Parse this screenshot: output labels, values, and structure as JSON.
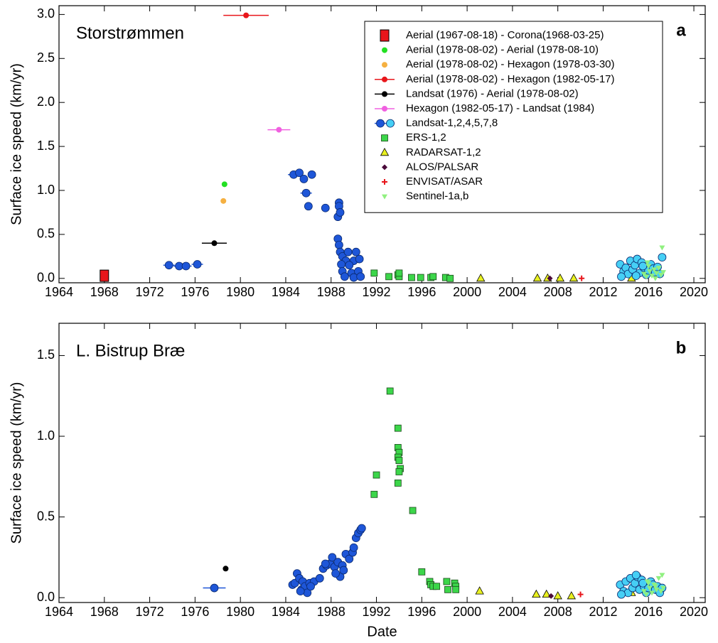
{
  "chart_data": [
    {
      "type": "scatter",
      "title": "Storstrømmen",
      "panel_label": "a",
      "ylabel": "Surface ice speed (km/yr)",
      "xlim": [
        1964,
        2021
      ],
      "ylim": [
        -0.05,
        3.1
      ],
      "xticks": [
        1964,
        1968,
        1972,
        1976,
        1980,
        1984,
        1988,
        1992,
        1996,
        2000,
        2004,
        2008,
        2012,
        2016,
        2020
      ],
      "yticks": [
        {
          "value": 0,
          "label": "0.0"
        },
        {
          "value": 0.5,
          "label": "0.5"
        },
        {
          "value": 1,
          "label": "1.0"
        },
        {
          "value": 1.5,
          "label": "1.5"
        },
        {
          "value": 2,
          "label": "2.0"
        },
        {
          "value": 2.5,
          "label": "2.5"
        },
        {
          "value": 3,
          "label": "3.0"
        }
      ],
      "legend": "upper right",
      "series": [
        {
          "name": "Aerial (1967-08-18) - Corona(1968-03-25)",
          "color": "#e8161b",
          "marker": "big-square",
          "x": [
            1968.0
          ],
          "values": [
            0.03
          ]
        },
        {
          "name": "Aerial (1978-08-02) - Aerial (1978-08-10)",
          "color": "#22e022",
          "marker": "dot",
          "x": [
            1978.6
          ],
          "values": [
            1.07
          ]
        },
        {
          "name": "Aerial (1978-08-02) - Hexagon (1978-03-30)",
          "color": "#f5b041",
          "marker": "dot",
          "x": [
            1978.5
          ],
          "values": [
            0.88
          ]
        },
        {
          "name": "Aerial (1978-08-02) - Hexagon (1982-05-17)",
          "color": "#e8161b",
          "marker": "dot",
          "x": [
            1980.5
          ],
          "values": [
            2.99
          ],
          "xerr": [
            2.0
          ]
        },
        {
          "name": "Landsat (1976) - Aerial (1978-08-02)",
          "color": "#000000",
          "marker": "dot",
          "x": [
            1977.7
          ],
          "values": [
            0.4
          ],
          "xerr": [
            1.1
          ]
        },
        {
          "name": "Hexagon (1982-05-17) - Landsat (1984)",
          "color": "#f060e0",
          "marker": "dot",
          "x": [
            1983.4
          ],
          "values": [
            1.69
          ],
          "xerr": [
            1.0
          ]
        },
        {
          "name": "Landsat-1,2,4,5,7,8",
          "colors": [
            "#1e56d8",
            "#46cff5"
          ],
          "color": "#1e56d8",
          "marker": "circle",
          "x": [
            1973.7,
            1974.6,
            1975.2,
            1976.2,
            1984.7,
            1985.2,
            1985.6,
            1986.3,
            1985.8,
            1986.0,
            1987.5,
            1988.7,
            1988.7,
            1988.6,
            1988.8,
            1988.6,
            1988.7,
            1988.8,
            1989.0,
            1989.5,
            1990.2,
            1989.3,
            1990.0,
            1990.5,
            1988.9,
            1989.6,
            1989.0,
            1989.8,
            1990.4,
            1989.2,
            1990.0,
            1990.6
          ],
          "values": [
            0.15,
            0.14,
            0.14,
            0.16,
            1.18,
            1.2,
            1.13,
            1.18,
            0.97,
            0.82,
            0.8,
            0.86,
            0.82,
            0.7,
            0.75,
            0.45,
            0.38,
            0.3,
            0.25,
            0.3,
            0.3,
            0.2,
            0.2,
            0.22,
            0.16,
            0.15,
            0.08,
            0.06,
            0.08,
            0.02,
            0.01,
            0.02
          ],
          "xerr": [
            0.5,
            0.5,
            0.5,
            0.5,
            0.5,
            null,
            null,
            null,
            0.5,
            null,
            null,
            null,
            null,
            null,
            null,
            null,
            null,
            null,
            null,
            null,
            null,
            null,
            null,
            null,
            null,
            null,
            null,
            null,
            null,
            null,
            null,
            null
          ]
        },
        {
          "name": "ERS-1,2",
          "color": "#3cd64a",
          "marker": "square",
          "x": [
            1991.8,
            1993.1,
            1993.9,
            1994.0,
            1994.0,
            1995.1,
            1995.9,
            1996.8,
            1997.0,
            1998.1,
            1998.5
          ],
          "values": [
            0.06,
            0.02,
            0.04,
            0.02,
            0.06,
            0.01,
            0.01,
            0.01,
            0.02,
            0.01,
            0.0
          ]
        },
        {
          "name": "RADARSAT-1,2",
          "color": "#e8f020",
          "marker": "triangle",
          "x": [
            2001.2,
            2006.2,
            2007.1,
            2008.2,
            2009.4,
            2014.5
          ],
          "values": [
            0.0,
            0.0,
            0.0,
            0.0,
            0.0,
            0.0
          ]
        },
        {
          "name": "ALOS/PALSAR",
          "color": "#4a0a3a",
          "marker": "diamond",
          "x": [
            2007.3
          ],
          "values": [
            0.0
          ]
        },
        {
          "name": "ENVISAT/ASAR",
          "color": "#e8161b",
          "marker": "star",
          "x": [
            2010.1
          ],
          "values": [
            0.0
          ]
        },
        {
          "color": "#46cff5",
          "marker": "circle",
          "x": [
            2013.5,
            2013.8,
            2014.0,
            2014.2,
            2014.4,
            2014.6,
            2014.8,
            2015.0,
            2015.2,
            2015.4,
            2015.6,
            2015.8,
            2016.0,
            2016.2,
            2016.4,
            2016.6,
            2016.8,
            2017.0,
            2017.2,
            2013.6,
            2014.9,
            2015.5
          ],
          "values": [
            0.16,
            0.08,
            0.12,
            0.05,
            0.2,
            0.1,
            0.15,
            0.22,
            0.06,
            0.18,
            0.12,
            0.04,
            0.09,
            0.16,
            0.11,
            0.07,
            0.13,
            0.05,
            0.24,
            0.02,
            0.03,
            0.14
          ]
        },
        {
          "name": "Sentinel-1a,b",
          "color": "#90f080",
          "marker": "triangle-down",
          "x": [
            2015.6,
            2015.9,
            2016.1,
            2016.3,
            2016.5,
            2016.7,
            2016.9,
            2017.1,
            2017.3,
            2017.2,
            2016.0,
            2015.8,
            2016.6
          ],
          "values": [
            0.05,
            0.18,
            0.08,
            0.03,
            0.1,
            0.06,
            0.12,
            0.04,
            0.07,
            0.35,
            0.14,
            0.02,
            0.0
          ]
        }
      ]
    },
    {
      "type": "scatter",
      "title": "L. Bistrup Bræ",
      "panel_label": "b",
      "ylabel": "Surface ice speed (km/yr)",
      "xlabel": "Date",
      "xlim": [
        1964,
        2021
      ],
      "ylim": [
        -0.03,
        1.7
      ],
      "xticks": [
        1964,
        1968,
        1972,
        1976,
        1980,
        1984,
        1988,
        1992,
        1996,
        2000,
        2004,
        2008,
        2012,
        2016,
        2020
      ],
      "yticks": [
        {
          "value": 0,
          "label": "0.0"
        },
        {
          "value": 0.5,
          "label": "0.5"
        },
        {
          "value": 1,
          "label": "1.0"
        },
        {
          "value": 1.5,
          "label": "1.5"
        }
      ],
      "series": [
        {
          "color": "#000000",
          "marker": "dot",
          "x": [
            1978.7
          ],
          "values": [
            0.18
          ]
        },
        {
          "color": "#1e56d8",
          "marker": "circle",
          "x": [
            1977.7,
            1984.6,
            1984.8,
            1985.0,
            1985.2,
            1985.4,
            1985.5,
            1985.7,
            1985.9,
            1986.1,
            1986.5,
            1987.0,
            1987.3,
            1987.6,
            1987.9,
            1988.1,
            1988.3,
            1988.6,
            1988.8,
            1989.0,
            1989.3,
            1989.6,
            1989.9,
            1990.2,
            1990.4,
            1990.6,
            1990.7,
            1985.3,
            1986.2,
            1987.5,
            1988.4,
            1989.1,
            1990.0
          ],
          "values": [
            0.06,
            0.08,
            0.09,
            0.15,
            0.12,
            0.05,
            0.1,
            0.07,
            0.03,
            0.09,
            0.1,
            0.12,
            0.18,
            0.2,
            0.21,
            0.25,
            0.19,
            0.22,
            0.13,
            0.2,
            0.27,
            0.24,
            0.28,
            0.37,
            0.4,
            0.42,
            0.43,
            0.04,
            0.07,
            0.21,
            0.15,
            0.17,
            0.31
          ],
          "xerr": [
            1.0,
            null,
            null,
            null,
            null,
            null,
            null,
            null,
            null,
            null,
            null,
            null,
            null,
            null,
            null,
            null,
            null,
            null,
            null,
            null,
            null,
            null,
            null,
            null,
            null,
            null,
            null,
            null,
            null,
            null,
            null,
            null,
            null
          ]
        },
        {
          "color": "#3cd64a",
          "marker": "square",
          "x": [
            1991.8,
            1992.0,
            1993.2,
            1993.9,
            1993.9,
            1994.0,
            1993.9,
            1994.0,
            1994.1,
            1994.0,
            1993.9,
            1995.2,
            1996.0,
            1996.7,
            1996.8,
            1997.0,
            1997.3,
            1998.2,
            1998.3,
            1998.9,
            1999.0,
            1999.0
          ],
          "values": [
            0.64,
            0.76,
            1.28,
            1.05,
            0.93,
            0.9,
            0.87,
            0.85,
            0.8,
            0.78,
            0.71,
            0.54,
            0.16,
            0.1,
            0.08,
            0.07,
            0.07,
            0.1,
            0.05,
            0.09,
            0.07,
            0.05
          ]
        },
        {
          "color": "#e8f020",
          "marker": "triangle",
          "x": [
            2001.1,
            2006.1,
            2007.0,
            2008.0,
            2009.2,
            2014.5
          ],
          "values": [
            0.04,
            0.02,
            0.02,
            0.01,
            0.01,
            0.03
          ]
        },
        {
          "color": "#4a0a3a",
          "marker": "diamond",
          "x": [
            2007.4
          ],
          "values": [
            0.01
          ]
        },
        {
          "color": "#e8161b",
          "marker": "star",
          "x": [
            2010.0
          ],
          "values": [
            0.02
          ]
        },
        {
          "color": "#46cff5",
          "marker": "circle",
          "x": [
            2013.5,
            2013.8,
            2014.0,
            2014.2,
            2014.4,
            2014.6,
            2014.8,
            2015.0,
            2015.2,
            2015.4,
            2015.6,
            2015.8,
            2016.0,
            2016.2,
            2016.4,
            2016.6,
            2016.8,
            2017.0,
            2017.2,
            2013.6,
            2014.9,
            2015.5
          ],
          "values": [
            0.08,
            0.04,
            0.1,
            0.03,
            0.12,
            0.06,
            0.09,
            0.13,
            0.05,
            0.11,
            0.07,
            0.03,
            0.06,
            0.1,
            0.08,
            0.05,
            0.07,
            0.03,
            0.06,
            0.02,
            0.14,
            0.09
          ]
        },
        {
          "color": "#90f080",
          "marker": "triangle-down",
          "x": [
            2015.6,
            2015.9,
            2016.1,
            2016.3,
            2016.5,
            2016.7,
            2016.9,
            2017.1,
            2017.3,
            2017.2,
            2016.0,
            2015.8,
            2016.6
          ],
          "values": [
            0.04,
            0.1,
            0.06,
            0.03,
            0.08,
            0.05,
            0.12,
            0.04,
            0.06,
            0.14,
            0.09,
            0.02,
            0.07
          ]
        }
      ]
    }
  ]
}
